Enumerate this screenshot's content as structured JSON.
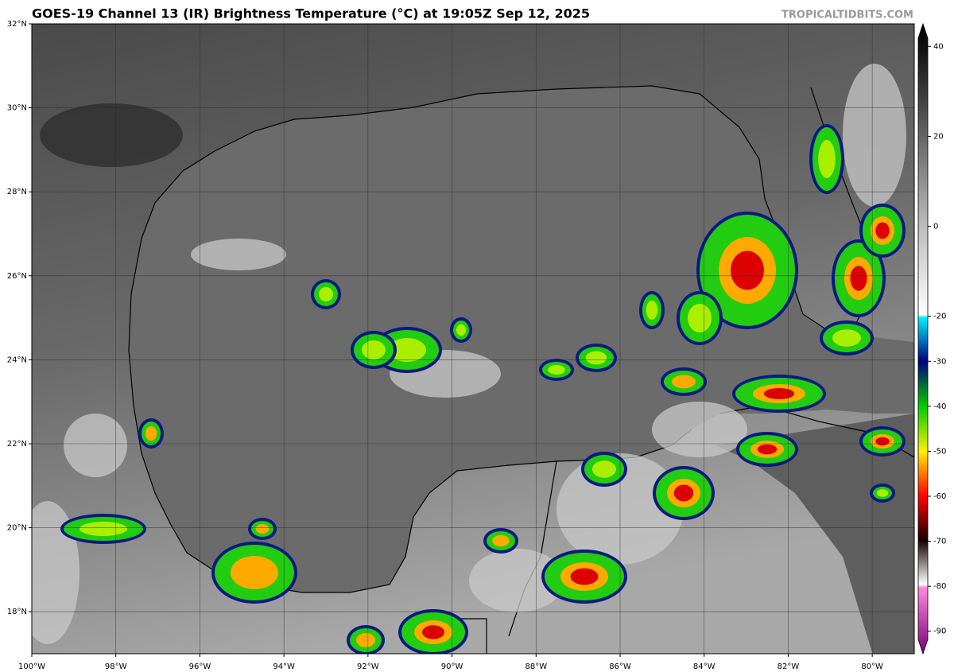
{
  "map": {
    "title": "GOES-19 Channel 13 (IR) Brightness Temperature (°C) at 19:05Z Sep 12, 2025",
    "credit": "TROPICALTIDBITS.COM",
    "xlim": [
      -100,
      -79
    ],
    "ylim": [
      17,
      32
    ],
    "xticks": [
      {
        "value": -100,
        "label": "100°W"
      },
      {
        "value": -98,
        "label": "98°W"
      },
      {
        "value": -96,
        "label": "96°W"
      },
      {
        "value": -94,
        "label": "94°W"
      },
      {
        "value": -92,
        "label": "92°W"
      },
      {
        "value": -90,
        "label": "90°W"
      },
      {
        "value": -88,
        "label": "88°W"
      },
      {
        "value": -86,
        "label": "86°W"
      },
      {
        "value": -84,
        "label": "84°W"
      },
      {
        "value": -82,
        "label": "82°W"
      },
      {
        "value": -80,
        "label": "80°W"
      }
    ],
    "yticks": [
      {
        "value": 18,
        "label": "18°N"
      },
      {
        "value": 20,
        "label": "20°N"
      },
      {
        "value": 22,
        "label": "22°N"
      },
      {
        "value": 24,
        "label": "24°N"
      },
      {
        "value": 26,
        "label": "26°N"
      },
      {
        "value": 28,
        "label": "28°N"
      },
      {
        "value": 30,
        "label": "30°N"
      },
      {
        "value": 32,
        "label": "32°N"
      }
    ]
  },
  "colorbar": {
    "lim": [
      -95,
      45
    ],
    "ticks": [
      40,
      20,
      0,
      -20,
      -30,
      -40,
      -50,
      -60,
      -70,
      -80,
      -90
    ]
  }
}
